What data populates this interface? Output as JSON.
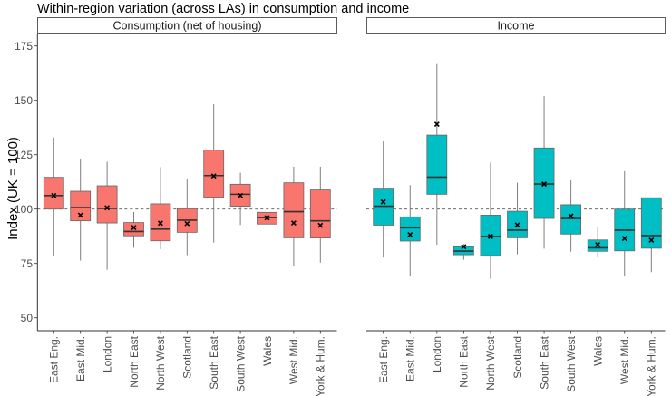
{
  "chart_data": {
    "type": "boxplot",
    "title": "Within-region variation (across LAs) in consumption and income",
    "ylabel": "Index (UK = 100)",
    "xlabel": "",
    "ylim": [
      45,
      178
    ],
    "yticks": [
      50,
      75,
      100,
      125,
      150,
      175
    ],
    "reference_line": 100,
    "mean_marker": "x",
    "grid": false,
    "categories": [
      "East Eng.",
      "East Mid.",
      "London",
      "North East",
      "North West",
      "Scotland",
      "South East",
      "South West",
      "Wales",
      "West Mid.",
      "York & Hum."
    ],
    "panels": [
      {
        "name": "Consumption (net of housing)",
        "color": "#F8766D",
        "boxes": [
          {
            "low": 78.5,
            "q1": 100.0,
            "median": 106.2,
            "q3": 114.6,
            "high": 132.9,
            "mean": 106.2
          },
          {
            "low": 76.3,
            "q1": 94.6,
            "median": 100.7,
            "q3": 108.2,
            "high": 123.2,
            "mean": 97.2
          },
          {
            "low": 72.1,
            "q1": 93.6,
            "median": 100.3,
            "q3": 110.7,
            "high": 121.8,
            "mean": 100.6
          },
          {
            "low": 82.2,
            "q1": 87.7,
            "median": 89.7,
            "q3": 93.8,
            "high": 98.6,
            "mean": 91.5
          },
          {
            "low": 81.5,
            "q1": 85.4,
            "median": 90.8,
            "q3": 102.4,
            "high": 119.3,
            "mean": 93.5
          },
          {
            "low": 78.8,
            "q1": 89.3,
            "median": 94.9,
            "q3": 100.2,
            "high": 113.8,
            "mean": 93.3
          },
          {
            "low": 84.6,
            "q1": 105.4,
            "median": 115.4,
            "q3": 127.1,
            "high": 148.2,
            "mean": 115.2
          },
          {
            "low": 92.7,
            "q1": 101.3,
            "median": 106.8,
            "q3": 111.4,
            "high": 116.7,
            "mean": 106.2
          },
          {
            "low": 85.6,
            "q1": 93.1,
            "median": 96.1,
            "q3": 98.5,
            "high": 106.3,
            "mean": 96.0
          },
          {
            "low": 73.8,
            "q1": 86.8,
            "median": 98.8,
            "q3": 112.1,
            "high": 119.5,
            "mean": 93.6
          },
          {
            "low": 75.4,
            "q1": 86.7,
            "median": 94.6,
            "q3": 108.8,
            "high": 119.5,
            "mean": 92.5
          }
        ]
      },
      {
        "name": "Income",
        "color": "#00BFC4",
        "boxes": [
          {
            "low": 77.7,
            "q1": 92.6,
            "median": 101.3,
            "q3": 109.2,
            "high": 131.1,
            "mean": 103.3
          },
          {
            "low": 69.0,
            "q1": 85.3,
            "median": 91.4,
            "q3": 96.4,
            "high": 111.0,
            "mean": 88.2
          },
          {
            "low": 83.6,
            "q1": 106.8,
            "median": 114.7,
            "q3": 134.0,
            "high": 166.7,
            "mean": 139.0
          },
          {
            "low": 76.7,
            "q1": 79.0,
            "median": 80.7,
            "q3": 82.7,
            "high": 83.9,
            "mean": 82.7
          },
          {
            "low": 67.9,
            "q1": 78.6,
            "median": 87.4,
            "q3": 97.2,
            "high": 121.4,
            "mean": 87.4
          },
          {
            "low": 79.2,
            "q1": 86.8,
            "median": 90.3,
            "q3": 99.0,
            "high": 112.1,
            "mean": 92.7
          },
          {
            "low": 81.8,
            "q1": 95.7,
            "median": 111.5,
            "q3": 128.1,
            "high": 151.9,
            "mean": 111.5
          },
          {
            "low": 80.4,
            "q1": 88.5,
            "median": 95.7,
            "q3": 102.0,
            "high": 113.2,
            "mean": 96.8
          },
          {
            "low": 77.8,
            "q1": 80.6,
            "median": 82.2,
            "q3": 85.8,
            "high": 91.5,
            "mean": 83.6
          },
          {
            "low": 69.0,
            "q1": 80.8,
            "median": 90.3,
            "q3": 100.0,
            "high": 117.4,
            "mean": 86.5
          },
          {
            "low": 71.0,
            "q1": 82.0,
            "median": 87.8,
            "q3": 105.2,
            "high": 105.2,
            "mean": 85.7
          }
        ]
      }
    ]
  }
}
